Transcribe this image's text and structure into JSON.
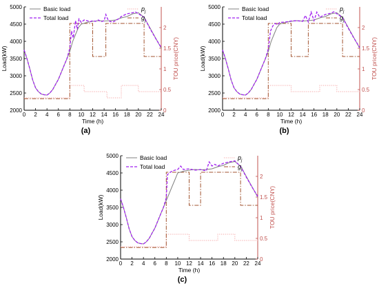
{
  "colors": {
    "basic_load": "#808080",
    "total_load": "#a020f0",
    "pj": "#f4a3a3",
    "gj": "#a0522d",
    "right_axis": "#c0504d"
  },
  "chart_data": [
    {
      "type": "line",
      "panel_label": "(a)",
      "xlabel": "Time (h)",
      "ylabel": "Load(kW)",
      "y2label": "TOU price(CNY)",
      "xlim": [
        0,
        24
      ],
      "ylim": [
        2000,
        5000
      ],
      "y2lim": [
        0,
        2.5
      ],
      "xticks": [
        "0",
        "2",
        "4",
        "6",
        "8",
        "10",
        "12",
        "14",
        "16",
        "18",
        "20",
        "22",
        "24"
      ],
      "yticks": [
        "2000",
        "2500",
        "3000",
        "3500",
        "4000",
        "4500",
        "5000"
      ],
      "y2ticks": [
        "0",
        "0.5",
        "1",
        "1.5",
        "2"
      ],
      "legend": {
        "basic_load": "Basic load",
        "total_load": "Total load",
        "pj_sym": "p",
        "pj_sub": "j",
        "gj_sym": "g",
        "gj_sub": "j"
      },
      "series": [
        {
          "name": "Basic load",
          "axis": "left",
          "style": "solid",
          "x": [
            0,
            0.5,
            1,
            1.5,
            2,
            2.5,
            3,
            3.5,
            4,
            4.5,
            5,
            5.5,
            6,
            6.5,
            7,
            7.5,
            8,
            8.5,
            9,
            9.5,
            10,
            11,
            12,
            13,
            14,
            15,
            16,
            17,
            18,
            19,
            20,
            21,
            22,
            23,
            24
          ],
          "y": [
            3750,
            3500,
            3200,
            2880,
            2650,
            2540,
            2470,
            2450,
            2440,
            2500,
            2600,
            2750,
            2900,
            3100,
            3300,
            3500,
            3700,
            4000,
            4200,
            4400,
            4500,
            4550,
            4580,
            4600,
            4590,
            4600,
            4620,
            4680,
            4720,
            4800,
            4830,
            4700,
            4400,
            4100,
            3800
          ]
        },
        {
          "name": "Total load",
          "axis": "left",
          "style": "dashed",
          "x": [
            0,
            0.5,
            1,
            1.5,
            2,
            2.5,
            3,
            3.5,
            4,
            4.5,
            5,
            5.5,
            6,
            6.5,
            7,
            7.5,
            8,
            8.3,
            8.6,
            9,
            9.3,
            9.6,
            10,
            10.5,
            11,
            11.5,
            12,
            12.5,
            13,
            13.5,
            14,
            14.3,
            14.6,
            15,
            15.5,
            16,
            16.5,
            17,
            18,
            19,
            19.5,
            20,
            21,
            22,
            23,
            24
          ],
          "y": [
            3750,
            3500,
            3200,
            2880,
            2650,
            2540,
            2470,
            2450,
            2440,
            2500,
            2600,
            2750,
            2900,
            3100,
            3300,
            3500,
            3800,
            4300,
            4100,
            4600,
            4350,
            4650,
            4550,
            4620,
            4600,
            4570,
            4600,
            4580,
            4620,
            4570,
            4600,
            4780,
            4650,
            4580,
            4560,
            4600,
            4650,
            4720,
            4800,
            4830,
            4850,
            4800,
            4700,
            4380,
            4090,
            3820
          ]
        },
        {
          "name": "p_j",
          "axis": "right",
          "style": "dotted",
          "x": [
            0,
            8,
            8,
            10.5,
            10.5,
            14.5,
            14.5,
            17,
            17,
            20,
            20,
            24
          ],
          "y": [
            0.3,
            0.3,
            0.6,
            0.6,
            0.45,
            0.45,
            0.3,
            0.3,
            0.6,
            0.6,
            0.45,
            0.45
          ]
        },
        {
          "name": "g_j",
          "axis": "right",
          "style": "dash-dot",
          "x": [
            0,
            8,
            8,
            12,
            12,
            14.3,
            14.3,
            16,
            16,
            21,
            21,
            24
          ],
          "y": [
            0.28,
            0.28,
            2.1,
            2.1,
            1.3,
            1.3,
            2.1,
            2.1,
            2.1,
            2.1,
            1.3,
            1.3
          ]
        }
      ]
    },
    {
      "type": "line",
      "panel_label": "(b)",
      "xlabel": "Time (h)",
      "ylabel": "Load(kW)",
      "y2label": "TOU price(CNY)",
      "xlim": [
        0,
        24
      ],
      "ylim": [
        2000,
        5000
      ],
      "y2lim": [
        0,
        2.5
      ],
      "xticks": [
        "0",
        "2",
        "4",
        "6",
        "8",
        "10",
        "12",
        "14",
        "16",
        "18",
        "20",
        "22",
        "24"
      ],
      "yticks": [
        "2000",
        "2500",
        "3000",
        "3500",
        "4000",
        "4500",
        "5000"
      ],
      "y2ticks": [
        "0",
        "0.5",
        "1",
        "1.5",
        "2"
      ],
      "legend": {
        "basic_load": "Basic load",
        "total_load": "Total load",
        "pj_sym": "p",
        "pj_sub": "j",
        "gj_sym": "g",
        "gj_sub": "j"
      },
      "series": [
        {
          "name": "Basic load",
          "axis": "left",
          "style": "solid",
          "x": [
            0,
            0.5,
            1,
            1.5,
            2,
            2.5,
            3,
            3.5,
            4,
            4.5,
            5,
            5.5,
            6,
            6.5,
            7,
            7.5,
            8,
            8.5,
            9,
            9.5,
            10,
            11,
            12,
            13,
            14,
            15,
            16,
            17,
            18,
            19,
            20,
            21,
            22,
            23,
            24
          ],
          "y": [
            3750,
            3500,
            3200,
            2880,
            2650,
            2540,
            2470,
            2450,
            2440,
            2500,
            2600,
            2750,
            2900,
            3100,
            3300,
            3500,
            3700,
            4000,
            4200,
            4400,
            4500,
            4550,
            4580,
            4600,
            4590,
            4600,
            4620,
            4680,
            4720,
            4800,
            4830,
            4700,
            4400,
            4100,
            3800
          ]
        },
        {
          "name": "Total load",
          "axis": "left",
          "style": "dashed",
          "x": [
            0,
            0.5,
            1,
            1.5,
            2,
            2.5,
            3,
            3.5,
            4,
            4.5,
            5,
            5.5,
            6,
            6.5,
            7,
            7.5,
            8,
            8.4,
            8.8,
            9.2,
            9.6,
            10,
            11,
            12,
            13,
            14,
            14.5,
            15,
            15.5,
            16,
            16.5,
            17,
            18,
            19,
            19.5,
            20,
            21,
            22,
            23,
            24
          ],
          "y": [
            3750,
            3500,
            3200,
            2880,
            2650,
            2540,
            2470,
            2450,
            2440,
            2500,
            2600,
            2750,
            2900,
            3100,
            3300,
            3500,
            3780,
            4300,
            4450,
            4520,
            4480,
            4550,
            4560,
            4590,
            4600,
            4580,
            4750,
            4560,
            4850,
            4600,
            4850,
            4700,
            4780,
            4820,
            4860,
            4800,
            4690,
            4380,
            4090,
            3820
          ]
        },
        {
          "name": "p_j",
          "axis": "right",
          "style": "dotted",
          "x": [
            0,
            8,
            8,
            12,
            12,
            17,
            17,
            20,
            20,
            24
          ],
          "y": [
            0.3,
            0.3,
            0.6,
            0.6,
            0.45,
            0.45,
            0.6,
            0.6,
            0.45,
            0.45
          ]
        },
        {
          "name": "g_j",
          "axis": "right",
          "style": "dash-dot",
          "x": [
            0,
            8,
            8,
            12,
            12,
            13,
            13,
            15,
            15,
            21,
            21,
            24
          ],
          "y": [
            0.28,
            0.28,
            2.1,
            2.1,
            1.3,
            1.3,
            1.3,
            1.3,
            2.1,
            2.1,
            1.3,
            1.3
          ]
        }
      ]
    },
    {
      "type": "line",
      "panel_label": "(c)",
      "xlabel": "Time (h)",
      "ylabel": "Load(kW)",
      "y2label": "TOU price(CNY)",
      "xlim": [
        0,
        24
      ],
      "ylim": [
        2000,
        5000
      ],
      "y2lim": [
        0,
        2.5
      ],
      "xticks": [
        "0",
        "2",
        "4",
        "6",
        "8",
        "10",
        "12",
        "14",
        "16",
        "18",
        "20",
        "22",
        "24"
      ],
      "yticks": [
        "2000",
        "2500",
        "3000",
        "3500",
        "4000",
        "4500",
        "5000"
      ],
      "y2ticks": [
        "0",
        "0.5",
        "1",
        "1.5",
        "2"
      ],
      "legend": {
        "basic_load": "Basic load",
        "total_load": "Total load",
        "pj_sym": "p",
        "pj_sub": "j",
        "gj_sym": "g",
        "gj_sub": "j"
      },
      "series": [
        {
          "name": "Basic load",
          "axis": "left",
          "style": "solid",
          "x": [
            0,
            0.5,
            1,
            1.5,
            2,
            2.5,
            3,
            3.5,
            4,
            4.5,
            5,
            5.5,
            6,
            6.5,
            7,
            7.5,
            8,
            8.5,
            9,
            9.5,
            10,
            11,
            12,
            13,
            14,
            15,
            16,
            17,
            18,
            19,
            20,
            21,
            22,
            23,
            24
          ],
          "y": [
            3750,
            3500,
            3200,
            2880,
            2650,
            2540,
            2470,
            2450,
            2440,
            2500,
            2600,
            2750,
            2900,
            3100,
            3300,
            3500,
            3700,
            3900,
            4100,
            4300,
            4500,
            4550,
            4580,
            4600,
            4590,
            4600,
            4620,
            4680,
            4720,
            4800,
            4830,
            4700,
            4400,
            4100,
            3800
          ]
        },
        {
          "name": "Total load",
          "axis": "left",
          "style": "dashed",
          "x": [
            0,
            0.5,
            1,
            1.5,
            2,
            2.5,
            3,
            3.5,
            4,
            4.5,
            5,
            5.5,
            6,
            6.5,
            7,
            7.5,
            8,
            8.2,
            8.5,
            9,
            9.5,
            10,
            10.5,
            11,
            12,
            13,
            14,
            15,
            15.5,
            16,
            16.5,
            17,
            18,
            19,
            20,
            21,
            22,
            23,
            24
          ],
          "y": [
            3750,
            3500,
            3200,
            2880,
            2650,
            2540,
            2470,
            2450,
            2440,
            2500,
            2600,
            2750,
            2900,
            3100,
            3300,
            3500,
            3780,
            4450,
            4500,
            4550,
            4580,
            4600,
            4700,
            4600,
            4620,
            4580,
            4600,
            4560,
            4820,
            4700,
            4750,
            4700,
            4780,
            4820,
            4850,
            4690,
            4380,
            4090,
            3820
          ]
        },
        {
          "name": "p_j",
          "axis": "right",
          "style": "dotted",
          "x": [
            0,
            8,
            8,
            12,
            12,
            17,
            17,
            20,
            20,
            24
          ],
          "y": [
            0.3,
            0.3,
            0.6,
            0.6,
            0.45,
            0.45,
            0.6,
            0.6,
            0.45,
            0.45
          ]
        },
        {
          "name": "g_j",
          "axis": "right",
          "style": "dash-dot",
          "x": [
            0,
            8,
            8,
            12,
            12,
            14,
            14,
            21,
            21,
            24
          ],
          "y": [
            0.28,
            0.28,
            2.1,
            2.1,
            1.3,
            1.3,
            2.1,
            2.1,
            1.3,
            1.3
          ]
        }
      ]
    }
  ]
}
